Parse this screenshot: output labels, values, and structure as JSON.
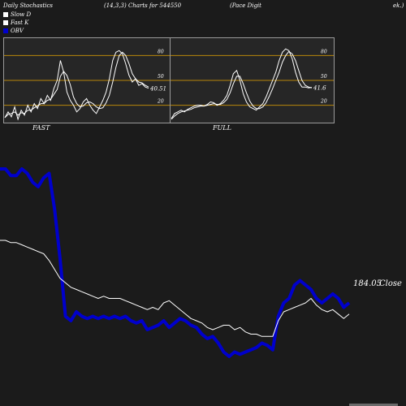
{
  "header": {
    "title": "Daily Stochastics",
    "params": "(14,3,3) Charts for 544550",
    "company": "(Pace  Digit",
    "tail": "ek.)"
  },
  "legend": [
    {
      "label": "Slow  D",
      "color": "#ffffff"
    },
    {
      "label": "Fast K",
      "color": "#ffffff"
    },
    {
      "label": "OBV",
      "color": "#0000cc"
    }
  ],
  "colors": {
    "background": "#1b1b1b",
    "panel": "#262626",
    "gridline": "#b8860b",
    "obv": "#0000cc",
    "price": "#ffffff"
  },
  "chart_data": [
    {
      "type": "line",
      "title": "FAST",
      "ylim": [
        0,
        100
      ],
      "yticks": [
        20,
        50,
        80
      ],
      "last_value_label": "40.51",
      "series": [
        {
          "values": [
            5,
            12,
            6,
            18,
            3,
            14,
            8,
            20,
            12,
            22,
            16,
            28,
            22,
            32,
            26,
            40,
            50,
            74,
            60,
            36,
            26,
            20,
            12,
            16,
            24,
            28,
            20,
            14,
            10,
            18,
            26,
            36,
            52,
            74,
            84,
            86,
            82,
            70,
            56,
            48,
            52,
            44,
            46,
            42,
            40.51
          ]
        },
        {
          "values": [
            5,
            9,
            10,
            12,
            8,
            11,
            10,
            14,
            14,
            17,
            19,
            22,
            22,
            26,
            27,
            33,
            39,
            55,
            61,
            56,
            45,
            30,
            22,
            18,
            19,
            23,
            24,
            22,
            18,
            16,
            17,
            23,
            32,
            48,
            66,
            80,
            84,
            80,
            70,
            58,
            52,
            48,
            47,
            44,
            42
          ]
        }
      ]
    },
    {
      "type": "line",
      "title": "FULL",
      "ylim": [
        0,
        100
      ],
      "yticks": [
        20,
        50,
        80
      ],
      "last_value_label": "41.6",
      "series": [
        {
          "values": [
            4,
            10,
            12,
            14,
            12,
            15,
            17,
            19,
            20,
            20,
            19,
            21,
            24,
            23,
            20,
            22,
            26,
            32,
            44,
            58,
            62,
            50,
            34,
            24,
            18,
            16,
            14,
            18,
            22,
            30,
            40,
            50,
            60,
            74,
            84,
            88,
            86,
            76,
            60,
            48,
            42,
            42,
            41,
            41.6
          ]
        },
        {
          "values": [
            3,
            7,
            10,
            12,
            13,
            14,
            15,
            17,
            18,
            19,
            19,
            20,
            21,
            22,
            21,
            21,
            23,
            27,
            35,
            46,
            55,
            55,
            46,
            35,
            25,
            19,
            16,
            16,
            18,
            23,
            31,
            40,
            50,
            60,
            72,
            80,
            85,
            82,
            74,
            62,
            50,
            44,
            42,
            41
          ]
        }
      ]
    },
    {
      "type": "line",
      "close_label": "184.05",
      "close_suffix": "Close",
      "series": [
        {
          "name": "OBV",
          "values": [
            88,
            88,
            85,
            85,
            88,
            86,
            82,
            80,
            84,
            86,
            70,
            48,
            22,
            20,
            24,
            22,
            21,
            22,
            21,
            22,
            21,
            22,
            21,
            22,
            20,
            19,
            20,
            16,
            17,
            18,
            20,
            17,
            19,
            21,
            20,
            18,
            17,
            14,
            12,
            13,
            10,
            6,
            4,
            6,
            5,
            6,
            7,
            8,
            10,
            9,
            7,
            22,
            28,
            30,
            36,
            38,
            36,
            34,
            30,
            28,
            30,
            32,
            30,
            26,
            28
          ]
        },
        {
          "name": "Price",
          "values": [
            56,
            56,
            55,
            55,
            54,
            53,
            52,
            51,
            50,
            47,
            43,
            39,
            37,
            35,
            34,
            33,
            32,
            31,
            30,
            31,
            30,
            30,
            30,
            29,
            28,
            27,
            26,
            25,
            26,
            25,
            28,
            29,
            27,
            25,
            23,
            21,
            20,
            19,
            17,
            16,
            17,
            18,
            18,
            16,
            17,
            15,
            14,
            14,
            13,
            13,
            13,
            20,
            24,
            25,
            26,
            27,
            28,
            30,
            27,
            25,
            24,
            25,
            23,
            21,
            23
          ]
        }
      ]
    }
  ]
}
